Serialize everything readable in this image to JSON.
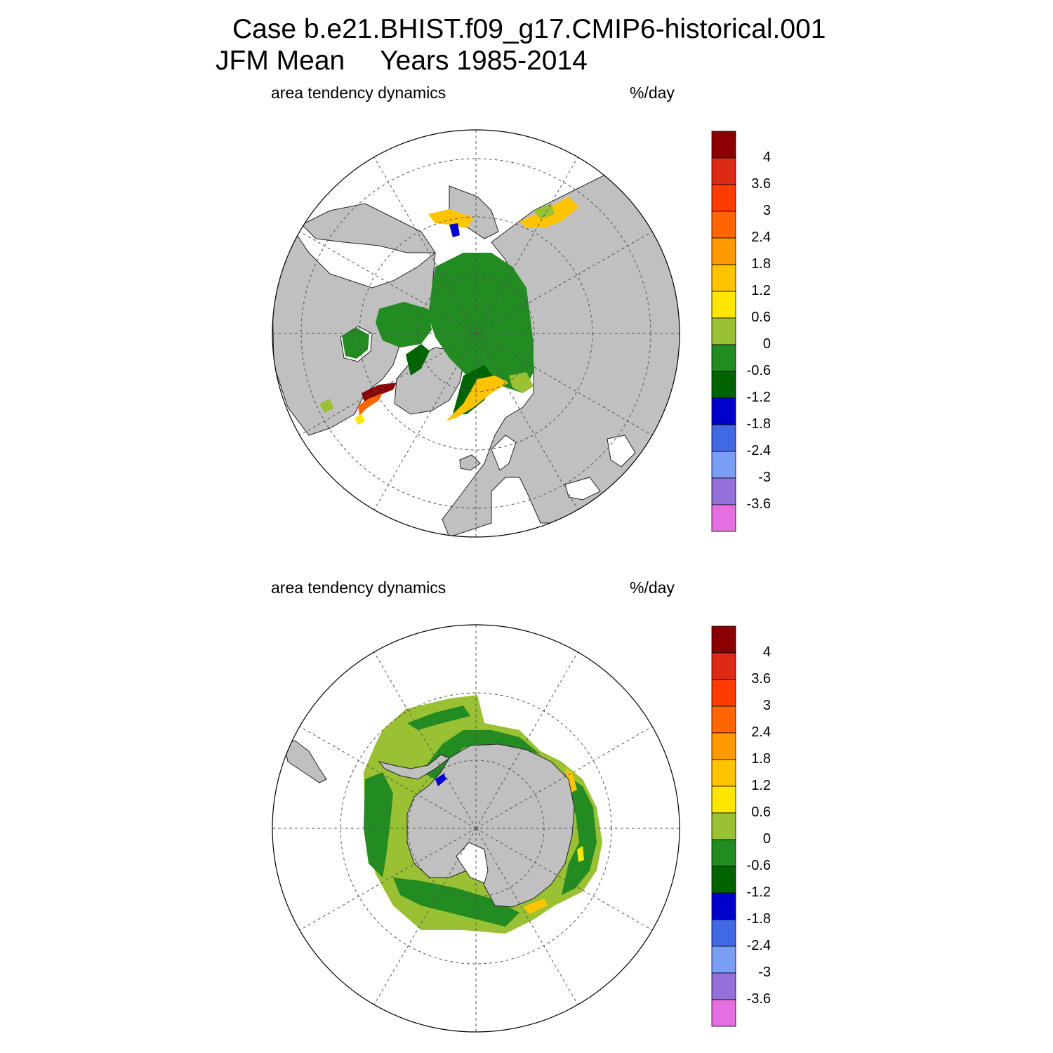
{
  "header": {
    "case": "Case b.e21.BHIST.f09_g17.CMIP6-historical.001",
    "season": "JFM Mean",
    "years": "Years 1985-2014"
  },
  "panels": [
    {
      "hemisphere": "north",
      "variable": "area tendency dynamics",
      "units": "%/day"
    },
    {
      "hemisphere": "south",
      "variable": "area tendency dynamics",
      "units": "%/day"
    }
  ],
  "colorbar": {
    "labels": [
      "4",
      "3.6",
      "3",
      "2.4",
      "1.8",
      "1.2",
      "0.6",
      "0",
      "-0.6",
      "-1.2",
      "-1.8",
      "-2.4",
      "-3",
      "-3.6"
    ],
    "colors": [
      "#8b0000",
      "#dc2a14",
      "#ff3c00",
      "#ff6600",
      "#ff9900",
      "#ffc300",
      "#ffe600",
      "#9ac033",
      "#228b22",
      "#006400",
      "#0000cd",
      "#4169e1",
      "#7b9ef5",
      "#9370db",
      "#e56fe0"
    ]
  },
  "colors": {
    "land": "#c0c0c0",
    "ocean": "#ffffff",
    "grid": "#555555"
  }
}
